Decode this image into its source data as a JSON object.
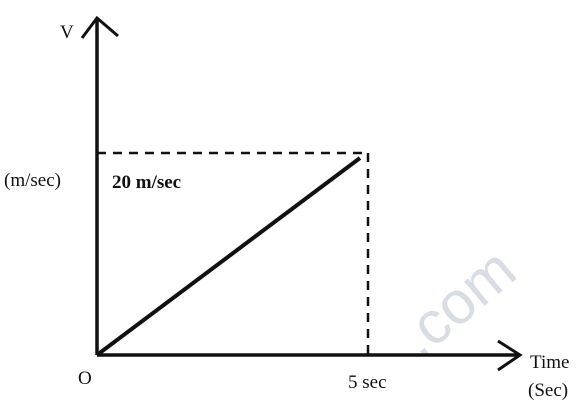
{
  "y_axis": {
    "label": "V",
    "unit": "(m/sec)"
  },
  "x_axis": {
    "label": "Time",
    "unit": "(Sec)"
  },
  "origin": "O",
  "y_marker": "20 m/sec",
  "x_marker": "5 sec",
  "watermark": ".com"
}
